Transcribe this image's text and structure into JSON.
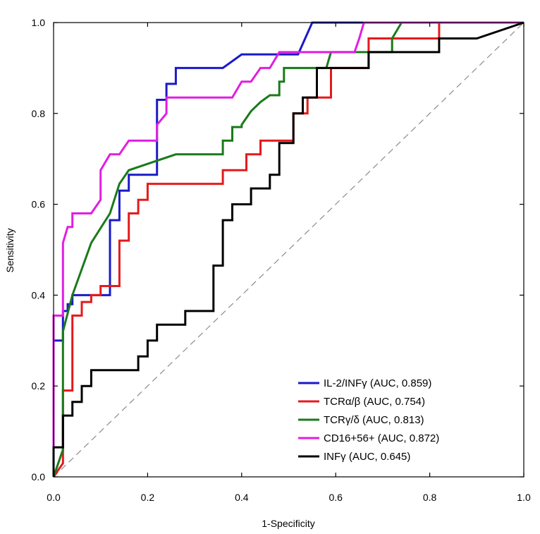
{
  "chart_data": {
    "type": "line",
    "title": "",
    "xlabel": "1-Specificity",
    "ylabel": "Sensitivity",
    "xlim": [
      0,
      1
    ],
    "ylim": [
      0,
      1
    ],
    "xticks": [
      "0.0",
      "0.2",
      "0.4",
      "0.6",
      "0.8",
      "1.0"
    ],
    "yticks": [
      "0.0",
      "0.2",
      "0.4",
      "0.6",
      "0.8",
      "1.0"
    ],
    "legend_position": "bottom-right",
    "grid": false,
    "reference_line": {
      "x": [
        0,
        1
      ],
      "y": [
        0,
        1
      ],
      "color": "#8c8c8c",
      "style": "dashed"
    },
    "series": [
      {
        "name": "IL-2/INFγ (AUC, 0.859)",
        "color": "#1a1ac8",
        "x": [
          0,
          0,
          0.02,
          0.02,
          0.03,
          0.03,
          0.04,
          0.04,
          0.12,
          0.12,
          0.14,
          0.14,
          0.16,
          0.16,
          0.22,
          0.22,
          0.24,
          0.24,
          0.26,
          0.26,
          0.36,
          0.4,
          0.52,
          0.55,
          0.68,
          1.0
        ],
        "y": [
          0,
          0.3,
          0.3,
          0.365,
          0.365,
          0.38,
          0.38,
          0.4,
          0.4,
          0.565,
          0.565,
          0.63,
          0.63,
          0.665,
          0.665,
          0.83,
          0.83,
          0.865,
          0.865,
          0.9,
          0.9,
          0.93,
          0.93,
          1.0,
          1.0,
          1.0
        ]
      },
      {
        "name": "TCRα/β (AUC, 0.754)",
        "color": "#e41a1c",
        "x": [
          0,
          0.02,
          0.02,
          0.04,
          0.04,
          0.06,
          0.06,
          0.08,
          0.08,
          0.1,
          0.1,
          0.12,
          0.12,
          0.14,
          0.14,
          0.16,
          0.16,
          0.18,
          0.18,
          0.2,
          0.2,
          0.36,
          0.36,
          0.41,
          0.41,
          0.44,
          0.44,
          0.51,
          0.51,
          0.54,
          0.54,
          0.59,
          0.59,
          0.67,
          0.67,
          0.82,
          0.82,
          1.0
        ],
        "y": [
          0,
          0.03,
          0.19,
          0.19,
          0.355,
          0.355,
          0.385,
          0.385,
          0.4,
          0.4,
          0.42,
          0.42,
          0.42,
          0.42,
          0.52,
          0.52,
          0.58,
          0.58,
          0.61,
          0.61,
          0.645,
          0.645,
          0.675,
          0.675,
          0.71,
          0.71,
          0.74,
          0.74,
          0.8,
          0.8,
          0.835,
          0.835,
          0.9,
          0.9,
          0.965,
          0.965,
          1.0,
          1.0
        ]
      },
      {
        "name": "TCRγ/δ (AUC, 0.813)",
        "color": "#1a7a1a",
        "x": [
          0,
          0.02,
          0.02,
          0.04,
          0.08,
          0.12,
          0.14,
          0.16,
          0.26,
          0.36,
          0.36,
          0.38,
          0.38,
          0.4,
          0.4,
          0.42,
          0.44,
          0.46,
          0.48,
          0.48,
          0.49,
          0.49,
          0.5,
          0.58,
          0.59,
          0.72,
          0.72,
          0.74,
          0.76,
          1.0
        ],
        "y": [
          0,
          0.06,
          0.32,
          0.4,
          0.515,
          0.58,
          0.645,
          0.675,
          0.71,
          0.71,
          0.74,
          0.74,
          0.77,
          0.77,
          0.775,
          0.805,
          0.825,
          0.84,
          0.84,
          0.87,
          0.87,
          0.9,
          0.9,
          0.9,
          0.935,
          0.935,
          0.965,
          1.0,
          1.0,
          1.0
        ]
      },
      {
        "name": "CD16+56+ (AUC, 0.872)",
        "color": "#e11ee1",
        "x": [
          0,
          0,
          0.02,
          0.02,
          0.03,
          0.04,
          0.04,
          0.08,
          0.1,
          0.1,
          0.12,
          0.14,
          0.16,
          0.22,
          0.22,
          0.24,
          0.24,
          0.26,
          0.38,
          0.4,
          0.42,
          0.44,
          0.46,
          0.48,
          0.5,
          0.64,
          0.65,
          0.66,
          1.0
        ],
        "y": [
          0,
          0.355,
          0.355,
          0.515,
          0.55,
          0.55,
          0.58,
          0.58,
          0.61,
          0.675,
          0.71,
          0.71,
          0.74,
          0.74,
          0.775,
          0.8,
          0.835,
          0.835,
          0.835,
          0.87,
          0.87,
          0.9,
          0.9,
          0.935,
          0.935,
          0.935,
          0.965,
          1.0,
          1.0
        ]
      },
      {
        "name": "INFγ (AUC, 0.645)",
        "color": "#000000",
        "x": [
          0,
          0,
          0.02,
          0.02,
          0.04,
          0.04,
          0.06,
          0.06,
          0.08,
          0.08,
          0.18,
          0.18,
          0.2,
          0.2,
          0.22,
          0.22,
          0.28,
          0.28,
          0.34,
          0.34,
          0.36,
          0.36,
          0.38,
          0.38,
          0.42,
          0.42,
          0.46,
          0.46,
          0.48,
          0.48,
          0.51,
          0.51,
          0.53,
          0.53,
          0.56,
          0.56,
          0.67,
          0.67,
          0.82,
          0.82,
          0.9,
          1.0
        ],
        "y": [
          0,
          0.065,
          0.065,
          0.135,
          0.135,
          0.165,
          0.165,
          0.2,
          0.2,
          0.235,
          0.235,
          0.265,
          0.265,
          0.3,
          0.3,
          0.335,
          0.335,
          0.365,
          0.365,
          0.465,
          0.465,
          0.565,
          0.565,
          0.6,
          0.6,
          0.635,
          0.635,
          0.665,
          0.665,
          0.735,
          0.735,
          0.8,
          0.8,
          0.835,
          0.835,
          0.9,
          0.9,
          0.935,
          0.935,
          0.965,
          0.965,
          1.0
        ]
      }
    ]
  }
}
